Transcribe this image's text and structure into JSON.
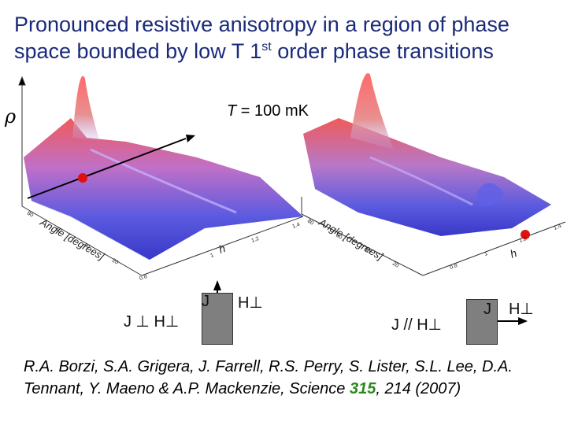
{
  "title": {
    "line1": "Pronounced resistive anisotropy in a region of phase",
    "line2_pre": "space bounded by low T 1",
    "line2_sup": "st",
    "line2_post": " order phase transitions"
  },
  "rho_label": "ρ",
  "temperature": {
    "symbol": "T",
    "rest": " = 100 mK"
  },
  "left_plot": {
    "axis_label_angle": "Angle [degrees]",
    "axis_label_h": "h",
    "angle_ticks": [
      "80",
      "60",
      "40",
      "20"
    ],
    "h_ticks": [
      "1.4",
      "1.2",
      "1",
      "0.8"
    ],
    "caption": "J ⊥ H⊥",
    "geometry": {
      "j": "J",
      "h": "H⊥"
    }
  },
  "right_plot": {
    "axis_label_angle": "Angle [degrees]",
    "axis_label_h": "h",
    "angle_ticks": [
      "80",
      "60",
      "40",
      "20"
    ],
    "h_ticks": [
      "1.4",
      "1.2",
      "1",
      "0.8"
    ],
    "caption": "J // H⊥",
    "geometry": {
      "j": "J",
      "h": "H⊥"
    }
  },
  "citation": {
    "text": "R.A. Borzi, S.A. Grigera, J. Farrell, R.S. Perry, S. Lister, S.L. Lee, D.A. Tennant, Y. Maeno & A.P. Mackenzie, Science ",
    "volume": "315",
    "pages": ", 214 (2007)"
  },
  "colors": {
    "title": "#1a2a7a",
    "volume": "#2a8a1a",
    "marker": "#e01010",
    "surface_high": "#e84a4a",
    "surface_low": "#3a3ad8"
  }
}
